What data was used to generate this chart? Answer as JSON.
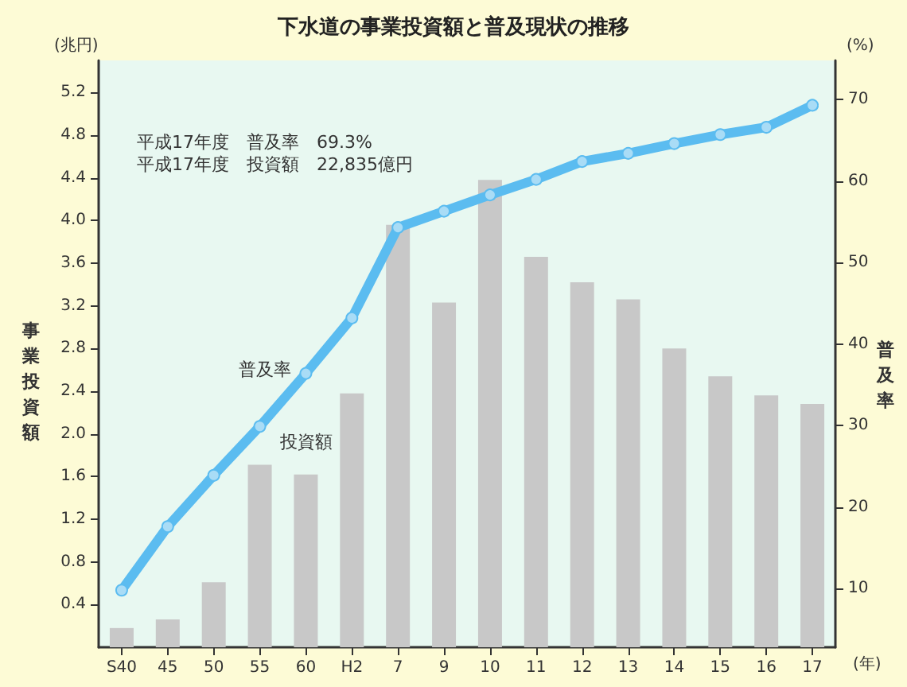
{
  "chart_data": {
    "type": "bar",
    "title": "下水道の事業投資額と普及現状の推移",
    "ylabel": "事業投資額",
    "y2label": "普及率",
    "annotations": [
      "平成17年度　普及率　69.3%",
      "平成17年度　投資額　22,835億円",
      "(兆円)",
      "(%)",
      "(年)"
    ],
    "categories": [
      "S40",
      "45",
      "50",
      "55",
      "60",
      "H2",
      "7",
      "9",
      "10",
      "11",
      "12",
      "13",
      "14",
      "15",
      "16",
      "17"
    ],
    "series": [
      {
        "name": "投資額",
        "color": "#c8c8c8",
        "values": [
          0.18,
          0.26,
          0.61,
          1.71,
          1.62,
          2.38,
          3.96,
          3.23,
          4.38,
          3.66,
          3.42,
          3.26,
          2.8,
          2.54,
          2.36,
          2.28
        ]
      },
      {
        "name": "普及率",
        "type": "line",
        "axis": "y2",
        "color": "#5bbcf0",
        "values": [
          9.8,
          17.6,
          23.9,
          29.9,
          36.4,
          43.2,
          54.3,
          56.3,
          58.3,
          60.2,
          62.4,
          63.4,
          64.6,
          65.7,
          66.6,
          69.3
        ]
      }
    ],
    "ylim": [
      0,
      5.5
    ],
    "yticks": [
      0.4,
      0.8,
      1.2,
      1.6,
      {
        "value": 2,
        "label": "2.0"
      },
      2.4,
      2.8,
      3.2,
      3.6,
      {
        "value": 4,
        "label": "4.0"
      },
      4.4,
      4.8,
      5.2
    ],
    "y2lim": [
      2.8,
      74.8
    ],
    "y2ticks": [
      10,
      20,
      30,
      40,
      50,
      60,
      70
    ],
    "grid": false,
    "legend": false,
    "marker": "circle"
  }
}
